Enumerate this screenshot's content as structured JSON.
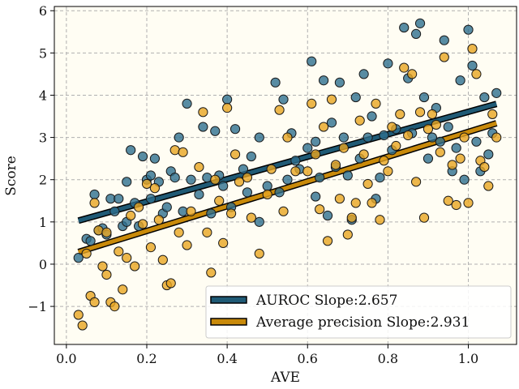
{
  "chart_data": {
    "type": "scatter",
    "title": "",
    "xlabel": "AVE",
    "ylabel": "Score",
    "xlim": [
      -0.03,
      1.12
    ],
    "ylim": [
      -1.9,
      6.1
    ],
    "xticks": [
      0.0,
      0.2,
      0.4,
      0.6,
      0.8,
      1.0
    ],
    "xtick_labels": [
      "0.0",
      "0.2",
      "0.4",
      "0.6",
      "0.8",
      "1.0"
    ],
    "yticks": [
      -1,
      0,
      1,
      2,
      3,
      4,
      5,
      6
    ],
    "ytick_labels": [
      "−1",
      "0",
      "1",
      "2",
      "3",
      "4",
      "5",
      "6"
    ],
    "grid": true,
    "legend_position": "lower-right",
    "background_color": "#fffdf3",
    "series": [
      {
        "name": "AUROC Slope:2.657",
        "color": "#2e6f8e",
        "line_color": "#1f5a75",
        "fit": {
          "intercept": 0.95,
          "slope": 2.657,
          "x_range": [
            0.03,
            1.07
          ]
        },
        "points": [
          [
            0.03,
            0.15
          ],
          [
            0.05,
            0.6
          ],
          [
            0.06,
            0.55
          ],
          [
            0.07,
            1.65
          ],
          [
            0.08,
            0.8
          ],
          [
            0.09,
            0.85
          ],
          [
            0.1,
            0.7
          ],
          [
            0.11,
            1.55
          ],
          [
            0.12,
            1.25
          ],
          [
            0.13,
            1.55
          ],
          [
            0.14,
            0.9
          ],
          [
            0.15,
            1.95
          ],
          [
            0.15,
            1.0
          ],
          [
            0.16,
            2.7
          ],
          [
            0.17,
            1.45
          ],
          [
            0.18,
            0.9
          ],
          [
            0.19,
            2.55
          ],
          [
            0.2,
            2.0
          ],
          [
            0.21,
            1.55
          ],
          [
            0.21,
            2.1
          ],
          [
            0.22,
            2.5
          ],
          [
            0.23,
            1.95
          ],
          [
            0.24,
            1.2
          ],
          [
            0.25,
            1.35
          ],
          [
            0.26,
            2.2
          ],
          [
            0.27,
            2.05
          ],
          [
            0.28,
            3.0
          ],
          [
            0.29,
            1.25
          ],
          [
            0.3,
            3.8
          ],
          [
            0.31,
            2.0
          ],
          [
            0.33,
            1.65
          ],
          [
            0.34,
            3.25
          ],
          [
            0.35,
            2.05
          ],
          [
            0.36,
            1.2
          ],
          [
            0.37,
            3.15
          ],
          [
            0.38,
            2.1
          ],
          [
            0.39,
            1.85
          ],
          [
            0.4,
            3.9
          ],
          [
            0.41,
            1.35
          ],
          [
            0.42,
            3.2
          ],
          [
            0.44,
            2.25
          ],
          [
            0.45,
            1.7
          ],
          [
            0.46,
            2.55
          ],
          [
            0.48,
            3.0
          ],
          [
            0.48,
            1.0
          ],
          [
            0.5,
            1.85
          ],
          [
            0.52,
            4.3
          ],
          [
            0.53,
            1.7
          ],
          [
            0.54,
            3.9
          ],
          [
            0.55,
            2.0
          ],
          [
            0.56,
            3.1
          ],
          [
            0.57,
            2.45
          ],
          [
            0.58,
            2.25
          ],
          [
            0.6,
            2.75
          ],
          [
            0.61,
            4.8
          ],
          [
            0.62,
            2.9
          ],
          [
            0.62,
            1.6
          ],
          [
            0.63,
            2.05
          ],
          [
            0.64,
            4.35
          ],
          [
            0.65,
            1.15
          ],
          [
            0.66,
            3.35
          ],
          [
            0.67,
            2.3
          ],
          [
            0.68,
            4.3
          ],
          [
            0.69,
            3.0
          ],
          [
            0.7,
            2.1
          ],
          [
            0.71,
            1.05
          ],
          [
            0.72,
            3.95
          ],
          [
            0.73,
            2.5
          ],
          [
            0.74,
            4.5
          ],
          [
            0.75,
            3.0
          ],
          [
            0.76,
            3.5
          ],
          [
            0.77,
            1.55
          ],
          [
            0.78,
            2.05
          ],
          [
            0.79,
            3.05
          ],
          [
            0.8,
            4.75
          ],
          [
            0.81,
            2.7
          ],
          [
            0.82,
            3.2
          ],
          [
            0.84,
            5.6
          ],
          [
            0.85,
            4.4
          ],
          [
            0.86,
            3.1
          ],
          [
            0.87,
            5.45
          ],
          [
            0.88,
            5.7
          ],
          [
            0.89,
            3.95
          ],
          [
            0.9,
            2.5
          ],
          [
            0.91,
            3.0
          ],
          [
            0.92,
            3.7
          ],
          [
            0.93,
            2.9
          ],
          [
            0.94,
            5.3
          ],
          [
            0.95,
            3.25
          ],
          [
            0.96,
            2.2
          ],
          [
            0.97,
            2.75
          ],
          [
            0.98,
            4.35
          ],
          [
            0.99,
            2.0
          ],
          [
            1.0,
            5.55
          ],
          [
            1.01,
            4.7
          ],
          [
            1.02,
            2.9
          ],
          [
            1.03,
            2.2
          ],
          [
            1.04,
            3.95
          ],
          [
            1.05,
            2.6
          ],
          [
            1.06,
            3.1
          ],
          [
            1.07,
            4.05
          ]
        ]
      },
      {
        "name": "Average precision Slope:2.931",
        "color": "#e8a521",
        "line_color": "#c98a0a",
        "fit": {
          "intercept": 0.2,
          "slope": 2.931,
          "x_range": [
            0.03,
            1.07
          ]
        },
        "points": [
          [
            0.03,
            -1.2
          ],
          [
            0.04,
            -1.45
          ],
          [
            0.05,
            0.25
          ],
          [
            0.06,
            -0.75
          ],
          [
            0.07,
            -0.9
          ],
          [
            0.07,
            1.45
          ],
          [
            0.08,
            0.8
          ],
          [
            0.09,
            -0.05
          ],
          [
            0.1,
            0.75
          ],
          [
            0.1,
            -0.25
          ],
          [
            0.11,
            -0.9
          ],
          [
            0.12,
            -1.0
          ],
          [
            0.13,
            0.3
          ],
          [
            0.14,
            -0.6
          ],
          [
            0.15,
            0.15
          ],
          [
            0.16,
            1.15
          ],
          [
            0.17,
            -0.05
          ],
          [
            0.18,
            1.35
          ],
          [
            0.19,
            0.95
          ],
          [
            0.2,
            1.9
          ],
          [
            0.21,
            0.4
          ],
          [
            0.22,
            1.8
          ],
          [
            0.23,
            1.05
          ],
          [
            0.24,
            0.1
          ],
          [
            0.25,
            -0.5
          ],
          [
            0.26,
            -0.45
          ],
          [
            0.27,
            2.7
          ],
          [
            0.28,
            0.75
          ],
          [
            0.29,
            2.65
          ],
          [
            0.3,
            0.45
          ],
          [
            0.31,
            1.25
          ],
          [
            0.33,
            2.3
          ],
          [
            0.34,
            3.6
          ],
          [
            0.35,
            0.75
          ],
          [
            0.36,
            -0.2
          ],
          [
            0.37,
            2.0
          ],
          [
            0.38,
            1.5
          ],
          [
            0.39,
            0.5
          ],
          [
            0.4,
            3.7
          ],
          [
            0.41,
            1.2
          ],
          [
            0.42,
            2.6
          ],
          [
            0.43,
            1.95
          ],
          [
            0.45,
            2.05
          ],
          [
            0.46,
            1.1
          ],
          [
            0.48,
            0.25
          ],
          [
            0.5,
            1.65
          ],
          [
            0.51,
            2.25
          ],
          [
            0.53,
            3.65
          ],
          [
            0.54,
            1.25
          ],
          [
            0.55,
            3.0
          ],
          [
            0.57,
            2.2
          ],
          [
            0.6,
            2.2
          ],
          [
            0.61,
            3.8
          ],
          [
            0.62,
            2.6
          ],
          [
            0.63,
            1.3
          ],
          [
            0.64,
            3.25
          ],
          [
            0.65,
            0.55
          ],
          [
            0.66,
            3.9
          ],
          [
            0.67,
            2.35
          ],
          [
            0.68,
            1.55
          ],
          [
            0.69,
            2.75
          ],
          [
            0.7,
            0.7
          ],
          [
            0.71,
            1.1
          ],
          [
            0.72,
            1.45
          ],
          [
            0.73,
            3.4
          ],
          [
            0.74,
            2.6
          ],
          [
            0.75,
            1.9
          ],
          [
            0.76,
            1.45
          ],
          [
            0.77,
            3.8
          ],
          [
            0.78,
            1.05
          ],
          [
            0.79,
            2.45
          ],
          [
            0.8,
            2.2
          ],
          [
            0.81,
            3.25
          ],
          [
            0.82,
            2.8
          ],
          [
            0.83,
            3.55
          ],
          [
            0.84,
            4.65
          ],
          [
            0.85,
            3.05
          ],
          [
            0.86,
            4.5
          ],
          [
            0.87,
            1.95
          ],
          [
            0.88,
            3.6
          ],
          [
            0.89,
            1.1
          ],
          [
            0.9,
            3.2
          ],
          [
            0.91,
            3.55
          ],
          [
            0.92,
            3.3
          ],
          [
            0.93,
            2.65
          ],
          [
            0.94,
            4.9
          ],
          [
            0.95,
            1.5
          ],
          [
            0.96,
            2.35
          ],
          [
            0.97,
            1.4
          ],
          [
            0.98,
            2.5
          ],
          [
            0.99,
            3.0
          ],
          [
            1.0,
            1.45
          ],
          [
            1.01,
            5.1
          ],
          [
            1.02,
            4.5
          ],
          [
            1.03,
            2.45
          ],
          [
            1.04,
            2.3
          ],
          [
            1.05,
            1.85
          ],
          [
            1.06,
            3.55
          ],
          [
            1.07,
            3.0
          ]
        ]
      }
    ]
  }
}
